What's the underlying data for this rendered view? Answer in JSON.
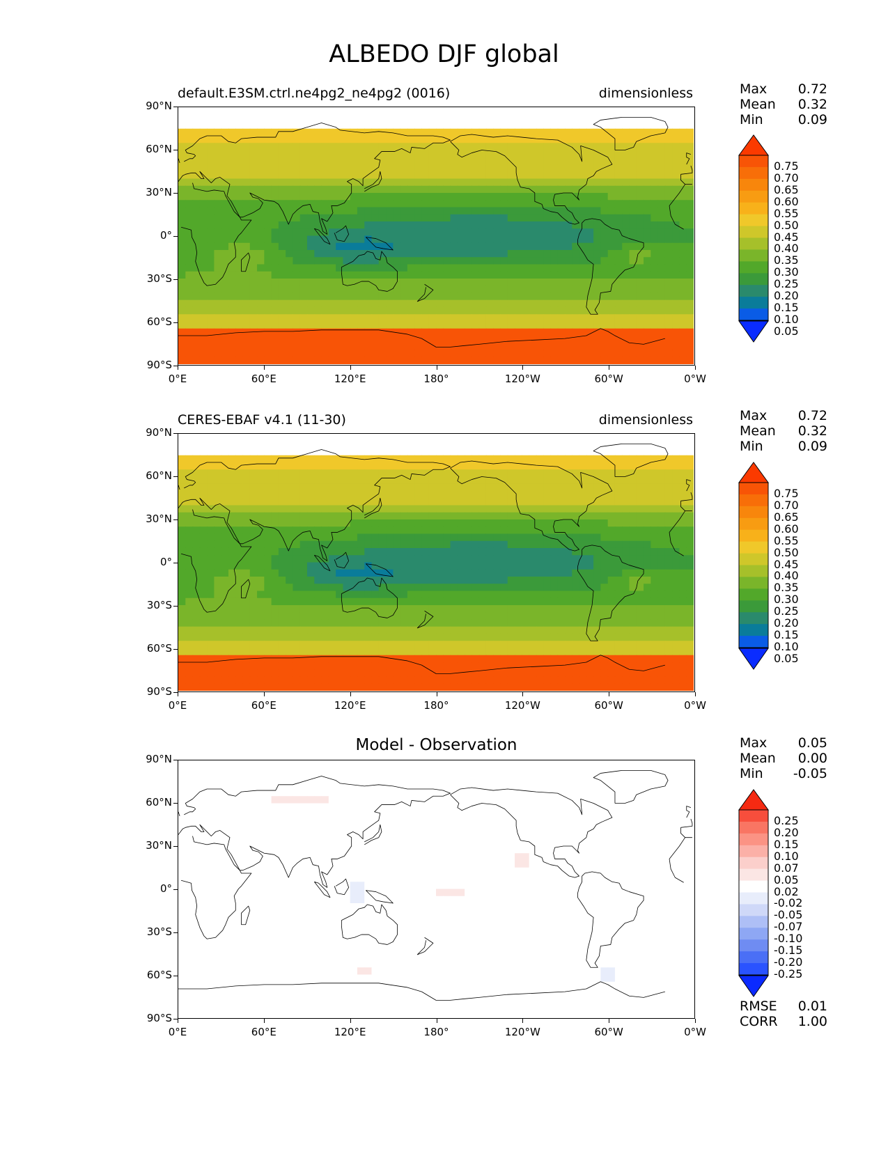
{
  "title": "ALBEDO DJF global",
  "colormap_main": [
    "#0a2cff",
    "#0a5ce6",
    "#0a7c9a",
    "#2a8a6c",
    "#3b9a3a",
    "#52a82a",
    "#7ab52a",
    "#a6c02a",
    "#cfc72a",
    "#f0c82a",
    "#f8b11a",
    "#f89c12",
    "#f8860c",
    "#f86e08",
    "#f85406",
    "#fb3a00"
  ],
  "colormap_diff": [
    "#0b2aff",
    "#2a53ff",
    "#4a6ff6",
    "#6f8cf2",
    "#8ea7f4",
    "#aebff6",
    "#cfd8f8",
    "#e8edfb",
    "#ffffff",
    "#fbe6e4",
    "#fbcfcb",
    "#fbb0a7",
    "#fb9384",
    "#f97563",
    "#f74e3c",
    "#f52a12"
  ],
  "axes": {
    "lat_ticks": [
      "90°N",
      "60°N",
      "30°N",
      "0°",
      "30°S",
      "60°S",
      "90°S"
    ],
    "lon_ticks": [
      "0°E",
      "60°E",
      "120°E",
      "180°",
      "120°W",
      "60°W",
      "0°W"
    ]
  },
  "panels": [
    {
      "id": "model",
      "title_left": "default.E3SM.ctrl.ne4pg2_ne4pg2 (0016)",
      "title_right": "dimensionless",
      "title_center": "",
      "stats": [
        {
          "label": "Max",
          "value": "0.72"
        },
        {
          "label": "Mean",
          "value": "0.32"
        },
        {
          "label": "Min",
          "value": "0.09"
        }
      ],
      "colorbar_labels": [
        "0.75",
        "0.70",
        "0.65",
        "0.60",
        "0.55",
        "0.50",
        "0.45",
        "0.40",
        "0.35",
        "0.30",
        "0.25",
        "0.20",
        "0.15",
        "0.10",
        "0.05"
      ]
    },
    {
      "id": "obs",
      "title_left": "CERES-EBAF v4.1 (11-30)",
      "title_right": "dimensionless",
      "title_center": "",
      "stats": [
        {
          "label": "Max",
          "value": "0.72"
        },
        {
          "label": "Mean",
          "value": "0.32"
        },
        {
          "label": "Min",
          "value": "0.09"
        }
      ],
      "colorbar_labels": [
        "0.75",
        "0.70",
        "0.65",
        "0.60",
        "0.55",
        "0.50",
        "0.45",
        "0.40",
        "0.35",
        "0.30",
        "0.25",
        "0.20",
        "0.15",
        "0.10",
        "0.05"
      ]
    },
    {
      "id": "diff",
      "title_left": "",
      "title_right": "",
      "title_center": "Model - Observation",
      "stats": [
        {
          "label": "Max",
          "value": "0.05"
        },
        {
          "label": "Mean",
          "value": "0.00"
        },
        {
          "label": "Min",
          "value": "-0.05"
        }
      ],
      "colorbar_labels": [
        "0.25",
        "0.20",
        "0.15",
        "0.10",
        "0.07",
        "0.05",
        "0.02",
        "-0.02",
        "-0.05",
        "-0.07",
        "-0.10",
        "-0.15",
        "-0.20",
        "-0.25"
      ],
      "metrics": [
        {
          "label": "RMSE",
          "value": "0.01"
        },
        {
          "label": "CORR",
          "value": "1.00"
        }
      ]
    }
  ]
}
